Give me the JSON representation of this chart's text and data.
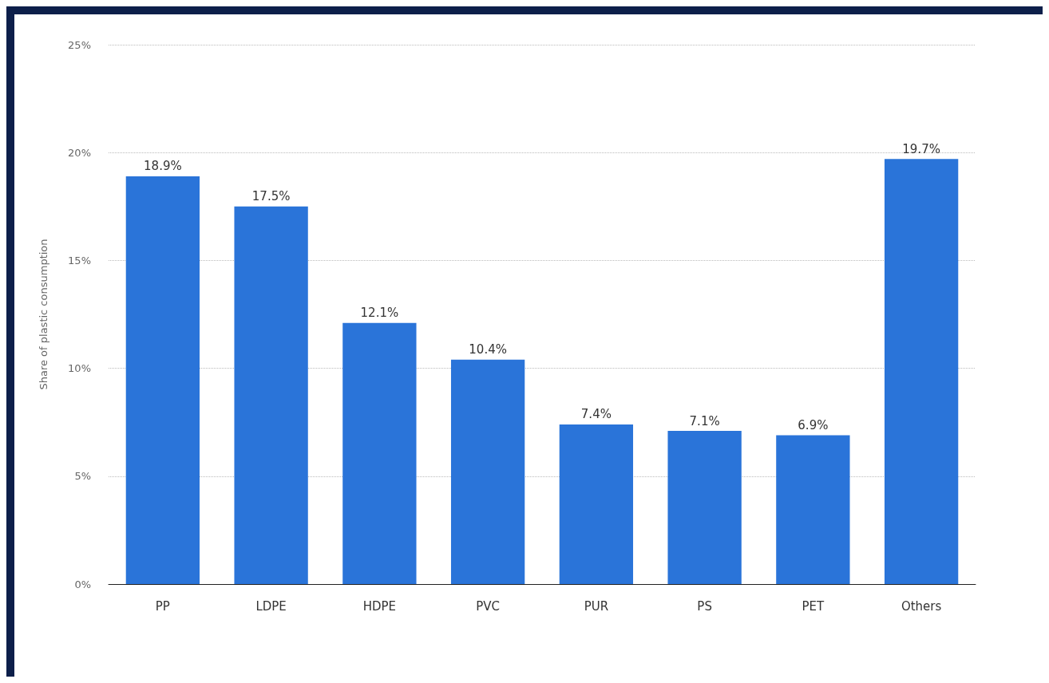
{
  "chart_data": {
    "type": "bar",
    "ylabel": "Share of plastic consumption",
    "categories": [
      "PP",
      "LDPE",
      "HDPE",
      "PVC",
      "PUR",
      "PS",
      "PET",
      "Others"
    ],
    "values": [
      18.9,
      17.5,
      12.1,
      10.4,
      7.4,
      7.1,
      6.9,
      19.7
    ],
    "value_labels": [
      "18.9%",
      "17.5%",
      "12.1%",
      "10.4%",
      "7.4%",
      "7.1%",
      "6.9%",
      "19.7%"
    ],
    "color": "#2a74d9",
    "ylim": [
      0,
      25
    ],
    "yticks": [
      {
        "value": 0,
        "label": "0%"
      },
      {
        "value": 5,
        "label": "5%"
      },
      {
        "value": 10,
        "label": "10%"
      },
      {
        "value": 15,
        "label": "15%"
      },
      {
        "value": 20,
        "label": "20%"
      },
      {
        "value": 25,
        "label": "25%"
      }
    ],
    "grid": "y"
  }
}
